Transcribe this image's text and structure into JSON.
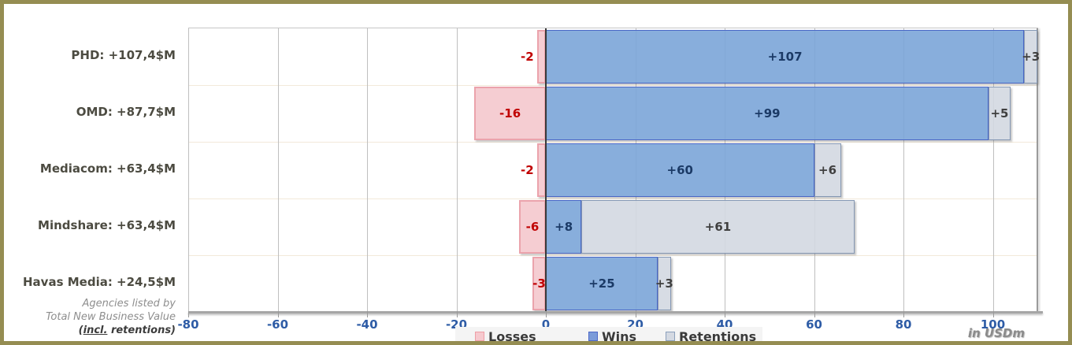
{
  "frame": {
    "border_color": "#958D52"
  },
  "chart_data": {
    "type": "bar",
    "orientation": "horizontal",
    "stacked": true,
    "title": "",
    "unit_label": "in USDm",
    "axis": {
      "min": -80,
      "max": 110,
      "ticks": [
        -80,
        -60,
        -40,
        -20,
        0,
        20,
        40,
        60,
        80,
        100
      ],
      "tick_label_color": "#2E5CA6",
      "grid": true
    },
    "legend_position": "bottom",
    "series_meta": {
      "losses": {
        "name": "Losses",
        "fill": "#F4C8CE",
        "border": "#EBA3AC",
        "label_color": "#C00000"
      },
      "wins": {
        "name": "Wins",
        "fill": "#7CA6D8",
        "border": "#4A67C6",
        "label_color": "#1B3A66"
      },
      "retentions": {
        "name": "Retentions",
        "fill": "#D3D8E1",
        "border": "#8598B4",
        "label_color": "#3F3F3F"
      }
    },
    "rows": [
      {
        "category": "PHD: +107,4$M",
        "loss": -2,
        "win": 107,
        "retention": 3,
        "loss_label": "-2",
        "win_label": "+107",
        "retention_label": "+3"
      },
      {
        "category": "OMD: +87,7$M",
        "loss": -16,
        "win": 99,
        "retention": 5,
        "loss_label": "-16",
        "win_label": "+99",
        "retention_label": "+5"
      },
      {
        "category": "Mediacom: +63,4$M",
        "loss": -2,
        "win": 60,
        "retention": 6,
        "loss_label": "-2",
        "win_label": "+60",
        "retention_label": "+6"
      },
      {
        "category": "Mindshare: +63,4$M",
        "loss": -6,
        "win": 8,
        "retention": 61,
        "loss_label": "-6",
        "win_label": "+8",
        "retention_label": "+61"
      },
      {
        "category": "Havas Media: +24,5$M",
        "loss": -3,
        "win": 25,
        "retention": 3,
        "loss_label": "-3",
        "win_label": "+25",
        "retention_label": "+3"
      }
    ]
  },
  "legend": {
    "items": [
      {
        "label": "Losses",
        "fill": "#F6C9CE",
        "border": "#EE9EA6"
      },
      {
        "label": "Wins",
        "fill": "#7B9BD9",
        "border": "#4D68C8"
      },
      {
        "label": "Retentions",
        "fill": "#D4D9E2",
        "border": "#8BA0BC"
      }
    ]
  },
  "footer": {
    "line1": "Agencies listed  by",
    "line2": "Total New Business Value",
    "line3_prefix": "(",
    "line3_underline": "incl.",
    "line3_suffix": " retentions)"
  }
}
